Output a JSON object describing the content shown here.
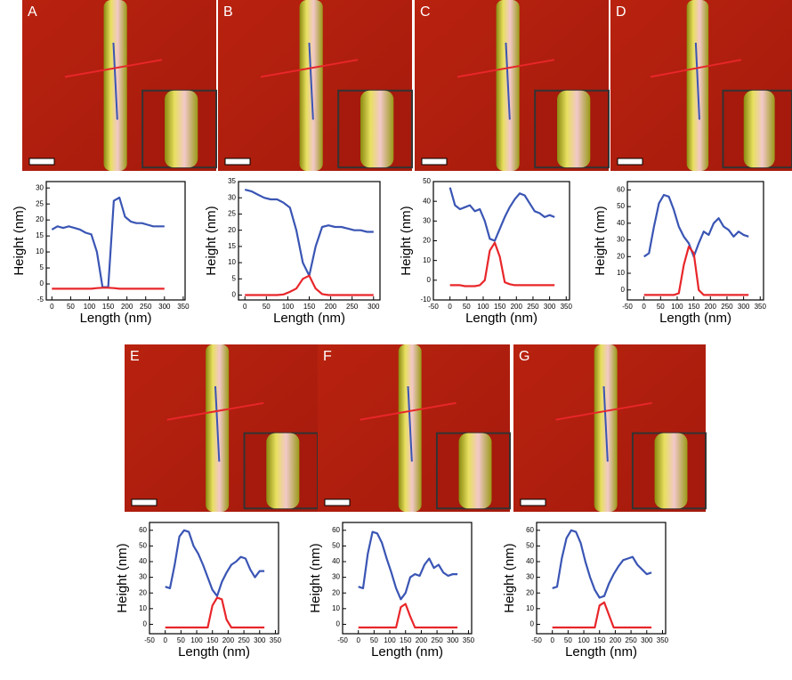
{
  "chart_data": [
    {
      "type": "line",
      "label": "A",
      "xlabel": "Length (nm)",
      "ylabel": "Height (nm)",
      "x": [
        0,
        15,
        30,
        45,
        60,
        75,
        90,
        105,
        120,
        135,
        150,
        165,
        180,
        195,
        210,
        225,
        240,
        255,
        270,
        285,
        300
      ],
      "xlim": [
        -15,
        355
      ],
      "xticks": [
        0,
        50,
        100,
        150,
        200,
        250,
        300,
        350
      ],
      "ylim": [
        -5,
        32
      ],
      "yticks": [
        -5,
        0,
        5,
        10,
        15,
        20,
        25,
        30
      ],
      "series": [
        {
          "color": "#3a55b4",
          "values": [
            17,
            18,
            17.5,
            18,
            17.5,
            17,
            16,
            15.5,
            10,
            -1,
            -1,
            26,
            27,
            21,
            19.5,
            19,
            19,
            18.5,
            18,
            18,
            18
          ]
        },
        {
          "color": "#e8262a",
          "values": [
            -1.5,
            -1.5,
            -1.5,
            -1.5,
            -1.5,
            -1.5,
            -1.5,
            -1.5,
            -1.3,
            -1.2,
            -1.2,
            -1.3,
            -1.5,
            -1.5,
            -1.5,
            -1.5,
            -1.5,
            -1.5,
            -1.5,
            -1.5,
            -1.5
          ]
        }
      ]
    },
    {
      "type": "line",
      "label": "B",
      "xlabel": "Length (nm)",
      "ylabel": "Height (nm)",
      "x": [
        0,
        15,
        30,
        45,
        60,
        75,
        90,
        105,
        120,
        135,
        150,
        165,
        180,
        195,
        210,
        225,
        240,
        255,
        270,
        285,
        300
      ],
      "xlim": [
        -15,
        315
      ],
      "xticks": [
        0,
        50,
        100,
        150,
        200,
        250,
        300
      ],
      "ylim": [
        -1.5,
        35
      ],
      "yticks": [
        0,
        5,
        10,
        15,
        20,
        25,
        30,
        35
      ],
      "series": [
        {
          "color": "#3a55b4",
          "values": [
            32.5,
            32,
            31,
            30,
            29.5,
            29.5,
            28.5,
            27,
            20,
            10,
            6,
            15,
            21,
            21.5,
            21,
            21,
            20.5,
            20,
            20,
            19.5,
            19.5
          ]
        },
        {
          "color": "#e8262a",
          "values": [
            0,
            0,
            0,
            0,
            0,
            0,
            0.2,
            1,
            2,
            5,
            6,
            2,
            0.3,
            0,
            0,
            0,
            0,
            0,
            0,
            0,
            0
          ]
        }
      ]
    },
    {
      "type": "line",
      "label": "C",
      "xlabel": "Length (nm)",
      "ylabel": "Height (nm)",
      "x": [
        0,
        15,
        30,
        45,
        60,
        75,
        90,
        105,
        120,
        135,
        150,
        165,
        180,
        195,
        210,
        225,
        240,
        255,
        270,
        285,
        300,
        315
      ],
      "xlim": [
        -50,
        360
      ],
      "xticks": [
        -50,
        0,
        50,
        100,
        150,
        200,
        250,
        300,
        350
      ],
      "ylim": [
        -10,
        50
      ],
      "yticks": [
        -10,
        0,
        10,
        20,
        30,
        40,
        50
      ],
      "series": [
        {
          "color": "#3a55b4",
          "values": [
            47,
            38,
            36,
            37,
            38,
            35,
            36,
            30,
            21,
            20,
            26,
            32,
            37,
            41,
            44,
            43,
            39,
            35,
            34,
            32,
            33,
            32
          ]
        },
        {
          "color": "#e8262a",
          "values": [
            -2.5,
            -2.5,
            -2.5,
            -3,
            -3,
            -3,
            -2.5,
            0,
            15,
            19,
            12,
            -1,
            -2,
            -2.5,
            -2.5,
            -2.5,
            -2.5,
            -2.5,
            -2.5,
            -2.5,
            -2.5,
            -2.5
          ]
        }
      ]
    },
    {
      "type": "line",
      "label": "D",
      "xlabel": "Length (nm)",
      "ylabel": "Height (nm)",
      "x": [
        0,
        15,
        30,
        45,
        60,
        75,
        90,
        105,
        120,
        135,
        150,
        165,
        180,
        195,
        210,
        225,
        240,
        255,
        270,
        285,
        300,
        315
      ],
      "xlim": [
        -50,
        360
      ],
      "xticks": [
        -50,
        0,
        50,
        100,
        150,
        200,
        250,
        300,
        350
      ],
      "ylim": [
        -6,
        65
      ],
      "yticks": [
        0,
        10,
        20,
        30,
        40,
        50,
        60
      ],
      "series": [
        {
          "color": "#3a55b4",
          "values": [
            20,
            22,
            38,
            52,
            57,
            56,
            48,
            38,
            32,
            28,
            20,
            28,
            35,
            33,
            40,
            43,
            38,
            36,
            32,
            35,
            33,
            32
          ]
        },
        {
          "color": "#e8262a",
          "values": [
            -3,
            -3,
            -3,
            -3,
            -3,
            -3,
            -3,
            -2,
            15,
            26,
            22,
            0,
            -3,
            -3,
            -3,
            -3,
            -3,
            -3,
            -3,
            -3,
            -3,
            -3
          ]
        }
      ]
    },
    {
      "type": "line",
      "label": "E",
      "xlabel": "Length (nm)",
      "ylabel": "Height (nm)",
      "x": [
        0,
        15,
        30,
        45,
        60,
        75,
        90,
        105,
        120,
        135,
        150,
        165,
        180,
        195,
        210,
        225,
        240,
        255,
        270,
        285,
        300,
        315
      ],
      "xlim": [
        -50,
        360
      ],
      "xticks": [
        -50,
        0,
        50,
        100,
        150,
        200,
        250,
        300,
        350
      ],
      "ylim": [
        -6,
        65
      ],
      "yticks": [
        0,
        10,
        20,
        30,
        40,
        50,
        60
      ],
      "series": [
        {
          "color": "#3a55b4",
          "values": [
            24,
            23,
            38,
            56,
            60,
            59,
            50,
            45,
            38,
            30,
            22,
            18,
            27,
            33,
            38,
            40,
            43,
            42,
            35,
            30,
            34,
            34
          ]
        },
        {
          "color": "#e8262a",
          "values": [
            -2,
            -2,
            -2,
            -2,
            -2,
            -2,
            -2,
            -2,
            -2,
            -2,
            12,
            17,
            16,
            3,
            -2,
            -2,
            -2,
            -2,
            -2,
            -2,
            -2,
            -2
          ]
        }
      ]
    },
    {
      "type": "line",
      "label": "F",
      "xlabel": "Length (nm)",
      "ylabel": "Height (nm)",
      "x": [
        0,
        15,
        30,
        45,
        60,
        75,
        90,
        105,
        120,
        135,
        150,
        165,
        180,
        195,
        210,
        225,
        240,
        255,
        270,
        285,
        300,
        315
      ],
      "xlim": [
        -50,
        360
      ],
      "xticks": [
        -50,
        0,
        50,
        100,
        150,
        200,
        250,
        300,
        350
      ],
      "ylim": [
        -6,
        65
      ],
      "yticks": [
        0,
        10,
        20,
        30,
        40,
        50,
        60
      ],
      "series": [
        {
          "color": "#3a55b4",
          "values": [
            24,
            23,
            45,
            59,
            58,
            52,
            42,
            33,
            23,
            16,
            20,
            30,
            32,
            31,
            38,
            42,
            36,
            38,
            33,
            31,
            32,
            32
          ]
        },
        {
          "color": "#e8262a",
          "values": [
            -2,
            -2,
            -2,
            -2,
            -2,
            -2,
            -2,
            -2,
            -2,
            11,
            13,
            5,
            -2,
            -2,
            -2,
            -2,
            -2,
            -2,
            -2,
            -2,
            -2,
            -2
          ]
        }
      ]
    },
    {
      "type": "line",
      "label": "G",
      "xlabel": "Length (nm)",
      "ylabel": "Height (nm)",
      "x": [
        0,
        15,
        30,
        45,
        60,
        75,
        90,
        105,
        120,
        135,
        150,
        165,
        180,
        195,
        210,
        225,
        240,
        255,
        270,
        285,
        300,
        315
      ],
      "xlim": [
        -50,
        360
      ],
      "xticks": [
        -50,
        0,
        50,
        100,
        150,
        200,
        250,
        300,
        350
      ],
      "ylim": [
        -6,
        65
      ],
      "yticks": [
        0,
        10,
        20,
        30,
        40,
        50,
        60
      ],
      "series": [
        {
          "color": "#3a55b4",
          "values": [
            23,
            24,
            42,
            55,
            60,
            59,
            52,
            40,
            30,
            22,
            17,
            18,
            26,
            32,
            37,
            41,
            42,
            43,
            38,
            35,
            32,
            33
          ]
        },
        {
          "color": "#e8262a",
          "values": [
            -2,
            -2,
            -2,
            -2,
            -2,
            -2,
            -2,
            -2,
            -2,
            -2,
            12,
            14,
            6,
            -2,
            -2,
            -2,
            -2,
            -2,
            -2,
            -2,
            -2,
            -2
          ]
        }
      ]
    }
  ]
}
